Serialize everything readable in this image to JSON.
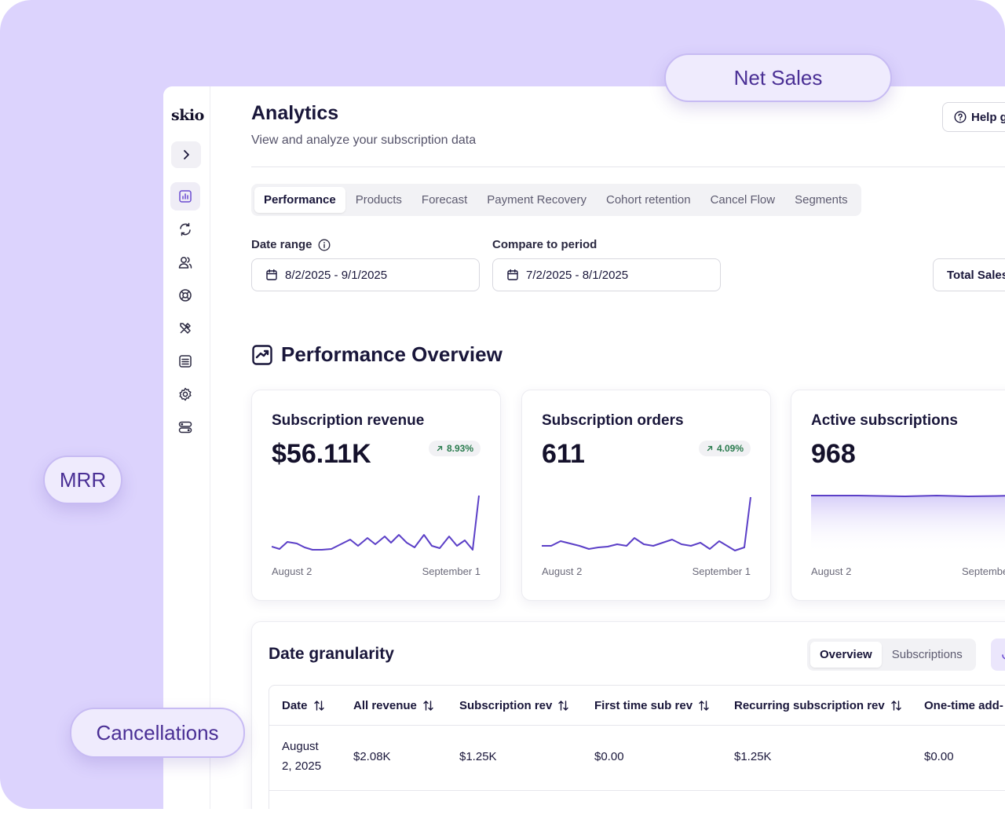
{
  "sidebar": {
    "logo": "skio",
    "items": [
      {
        "icon": "bar-chart-icon",
        "active": true
      },
      {
        "icon": "refresh-icon",
        "active": false
      },
      {
        "icon": "users-icon",
        "active": false
      },
      {
        "icon": "lifebuoy-icon",
        "active": false
      },
      {
        "icon": "tools-icon",
        "active": false
      },
      {
        "icon": "list-icon",
        "active": false
      },
      {
        "icon": "gear-icon",
        "active": false
      },
      {
        "icon": "toggles-icon",
        "active": false
      }
    ]
  },
  "header": {
    "title": "Analytics",
    "subtitle": "View and analyze your subscription data",
    "help_label": "Help g"
  },
  "tabs": [
    "Performance",
    "Products",
    "Forecast",
    "Payment Recovery",
    "Cohort retention",
    "Cancel Flow",
    "Segments"
  ],
  "filters": {
    "date_range_label": "Date range",
    "date_range_value": "8/2/2025 - 9/1/2025",
    "compare_label": "Compare to period",
    "compare_value": "7/2/2025 - 8/1/2025",
    "metric_select": "Total Sales"
  },
  "overview": {
    "title": "Performance Overview",
    "cards": [
      {
        "label": "Subscription revenue",
        "value": "$56.11K",
        "change": "8.93%",
        "x_start": "August 2",
        "x_end": "September 1"
      },
      {
        "label": "Subscription orders",
        "value": "611",
        "change": "4.09%",
        "x_start": "August 2",
        "x_end": "September 1"
      },
      {
        "label": "Active subscriptions",
        "value": "968",
        "change": "",
        "x_start": "August 2",
        "x_end": "Septembe"
      }
    ]
  },
  "granularity": {
    "title": "Date granularity",
    "view_tabs": [
      "Overview",
      "Subscriptions"
    ],
    "columns": [
      "Date",
      "All revenue",
      "Subscription rev",
      "First time sub rev",
      "Recurring subscription rev",
      "One-time add-"
    ],
    "rows": [
      {
        "date": "August 2, 2025",
        "date_line1": "August",
        "date_line2": "2, 2025",
        "all_revenue": "$2.08K",
        "subscription_rev": "$1.25K",
        "first_time_sub_rev": "$0.00",
        "recurring_subscription_rev": "$1.25K",
        "one_time_add": "$0.00"
      }
    ]
  },
  "callouts": {
    "net_sales": "Net Sales",
    "mrr": "MRR",
    "cancellations": "Cancellations"
  },
  "colors": {
    "background": "#dcd3fd",
    "accent": "#6a4bd1",
    "positive": "#2a7b4e"
  }
}
